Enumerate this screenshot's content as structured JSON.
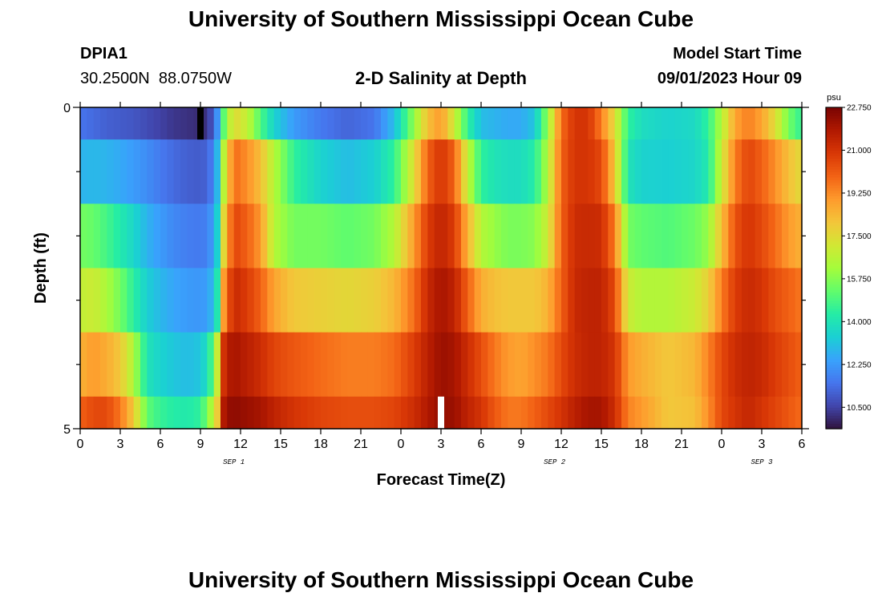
{
  "page_title": "University of Southern Mississippi Ocean Cube",
  "page_title_bottom": "University of Southern Mississippi Ocean Cube",
  "station": {
    "id": "DPIA1",
    "coords": "30.2500N  88.0750W"
  },
  "model": {
    "label": "Model Start Time",
    "time": "09/01/2023 Hour 09"
  },
  "chart_data": {
    "type": "heatmap",
    "title": "2-D Salinity at Depth",
    "xlabel": "Forecast Time(Z)",
    "ylabel": "Depth (ft)",
    "x_tick_labels": [
      "0",
      "3",
      "6",
      "9",
      "12",
      "15",
      "18",
      "21",
      "0",
      "3",
      "6",
      "9",
      "12",
      "15",
      "18",
      "21",
      "0",
      "3",
      "6"
    ],
    "x_tick_hours": [
      0,
      3,
      6,
      9,
      12,
      15,
      18,
      21,
      24,
      27,
      30,
      33,
      36,
      39,
      42,
      45,
      48,
      51,
      54
    ],
    "x_range": [
      0,
      54
    ],
    "date_labels": [
      {
        "text": "SEP 1",
        "hour": 11.5
      },
      {
        "text": "SEP 2",
        "hour": 35.5
      },
      {
        "text": "SEP 3",
        "hour": 51
      }
    ],
    "y_tick_labels": [
      "0",
      "5"
    ],
    "y_range": [
      0,
      5
    ],
    "depth_bands": [
      [
        0,
        0.5
      ],
      [
        0.5,
        1.5
      ],
      [
        1.5,
        2.5
      ],
      [
        2.5,
        3.5
      ],
      [
        3.5,
        4.5
      ],
      [
        4.5,
        5
      ]
    ],
    "time_step_hours": 0.5,
    "profile_keys": [
      {
        "h": 0,
        "v": [
          11.5,
          12.8,
          15.5,
          16.8,
          18.5,
          20.0
        ]
      },
      {
        "h": 1,
        "v": [
          11.3,
          12.9,
          15.3,
          17.0,
          19.0,
          20.5
        ]
      },
      {
        "h": 2,
        "v": [
          11.1,
          12.8,
          14.8,
          16.3,
          18.6,
          20.5
        ]
      },
      {
        "h": 3,
        "v": [
          11.0,
          12.6,
          14.2,
          15.5,
          18.0,
          19.6
        ]
      },
      {
        "h": 4,
        "v": [
          10.9,
          12.3,
          13.6,
          14.4,
          16.4,
          18.0
        ]
      },
      {
        "h": 5,
        "v": [
          10.7,
          12.0,
          12.8,
          13.4,
          14.0,
          15.2
        ]
      },
      {
        "h": 6,
        "v": [
          10.5,
          11.6,
          12.3,
          12.9,
          13.5,
          14.6
        ]
      },
      {
        "h": 7,
        "v": [
          10.3,
          11.3,
          11.9,
          12.5,
          13.2,
          14.3
        ]
      },
      {
        "h": 8,
        "v": [
          10.2,
          11.1,
          11.7,
          12.3,
          13.0,
          14.2
        ]
      },
      {
        "h": 9,
        "v": [
          10.1,
          11.0,
          11.6,
          12.2,
          13.2,
          14.5
        ]
      },
      {
        "h": 9.6,
        "v": [
          10.3,
          11.2,
          11.8,
          12.4,
          14.0,
          15.8
        ]
      },
      {
        "h": 10.2,
        "v": [
          11.8,
          12.5,
          13.0,
          13.6,
          16.5,
          17.5
        ]
      },
      {
        "h": 10.8,
        "v": [
          15.5,
          17.0,
          18.0,
          19.5,
          21.5,
          22.2
        ]
      },
      {
        "h": 11.5,
        "v": [
          17.6,
          19.8,
          20.6,
          21.3,
          22.0,
          22.4
        ]
      },
      {
        "h": 12.5,
        "v": [
          16.8,
          19.2,
          20.0,
          20.8,
          21.6,
          22.2
        ]
      },
      {
        "h": 13.5,
        "v": [
          15.0,
          18.2,
          19.0,
          20.0,
          21.2,
          22.0
        ]
      },
      {
        "h": 14.5,
        "v": [
          13.5,
          16.5,
          16.5,
          18.8,
          20.6,
          21.5
        ]
      },
      {
        "h": 16,
        "v": [
          12.3,
          14.5,
          15.5,
          18.0,
          20.2,
          21.0
        ]
      },
      {
        "h": 18,
        "v": [
          11.6,
          13.5,
          15.5,
          17.8,
          19.8,
          20.6
        ]
      },
      {
        "h": 20,
        "v": [
          11.2,
          13.0,
          15.2,
          17.6,
          19.5,
          20.4
        ]
      },
      {
        "h": 22,
        "v": [
          11.5,
          13.4,
          15.5,
          17.8,
          19.5,
          20.4
        ]
      },
      {
        "h": 23.5,
        "v": [
          13.0,
          14.5,
          16.5,
          18.4,
          19.8,
          20.6
        ]
      },
      {
        "h": 25,
        "v": [
          16.0,
          17.5,
          19.0,
          19.8,
          20.8,
          21.2
        ]
      },
      {
        "h": 26,
        "v": [
          18.2,
          20.0,
          20.8,
          21.3,
          21.6,
          21.8
        ]
      },
      {
        "h": 27,
        "v": [
          19.0,
          21.0,
          21.5,
          22.0,
          22.2,
          22.3
        ]
      },
      {
        "h": 28,
        "v": [
          17.0,
          20.0,
          20.8,
          21.5,
          22.0,
          22.2
        ]
      },
      {
        "h": 29,
        "v": [
          14.5,
          16.8,
          18.5,
          20.0,
          21.2,
          21.5
        ]
      },
      {
        "h": 30,
        "v": [
          13.0,
          14.5,
          16.5,
          18.6,
          20.4,
          21.0
        ]
      },
      {
        "h": 31,
        "v": [
          12.8,
          14.0,
          16.0,
          18.2,
          19.6,
          20.2
        ]
      },
      {
        "h": 32,
        "v": [
          12.6,
          13.8,
          15.6,
          18.0,
          19.0,
          19.6
        ]
      },
      {
        "h": 33,
        "v": [
          12.6,
          13.8,
          15.6,
          18.0,
          18.8,
          19.6
        ]
      },
      {
        "h": 34,
        "v": [
          13.2,
          14.3,
          15.8,
          18.0,
          19.2,
          20.0
        ]
      },
      {
        "h": 35,
        "v": [
          16.0,
          16.5,
          17.0,
          18.5,
          19.6,
          20.5
        ]
      },
      {
        "h": 36,
        "v": [
          19.8,
          20.0,
          20.0,
          20.0,
          20.5,
          21.0
        ]
      },
      {
        "h": 37,
        "v": [
          21.0,
          21.0,
          21.2,
          21.3,
          21.2,
          21.6
        ]
      },
      {
        "h": 38,
        "v": [
          21.0,
          21.0,
          21.3,
          21.5,
          21.5,
          22.0
        ]
      },
      {
        "h": 39,
        "v": [
          19.5,
          20.5,
          21.2,
          21.5,
          21.5,
          22.0
        ]
      },
      {
        "h": 40,
        "v": [
          17.5,
          18.0,
          19.5,
          20.5,
          21.0,
          21.2
        ]
      },
      {
        "h": 41,
        "v": [
          14.5,
          14.0,
          15.5,
          17.0,
          19.0,
          19.4
        ]
      },
      {
        "h": 42,
        "v": [
          13.8,
          13.5,
          15.2,
          16.5,
          18.6,
          19.0
        ]
      },
      {
        "h": 44,
        "v": [
          13.5,
          13.4,
          15.0,
          16.5,
          18.0,
          18.0
        ]
      },
      {
        "h": 46,
        "v": [
          13.7,
          13.6,
          15.4,
          17.0,
          18.4,
          18.2
        ]
      },
      {
        "h": 47,
        "v": [
          14.5,
          14.2,
          16.0,
          17.8,
          19.4,
          19.2
        ]
      },
      {
        "h": 48,
        "v": [
          16.5,
          17.0,
          18.2,
          19.5,
          20.5,
          20.5
        ]
      },
      {
        "h": 49,
        "v": [
          18.8,
          19.5,
          20.3,
          20.8,
          21.2,
          21.0
        ]
      },
      {
        "h": 50,
        "v": [
          19.5,
          20.6,
          21.0,
          21.3,
          21.5,
          21.4
        ]
      },
      {
        "h": 51,
        "v": [
          18.8,
          20.0,
          20.5,
          21.0,
          21.3,
          21.0
        ]
      },
      {
        "h": 52,
        "v": [
          17.5,
          19.2,
          19.8,
          20.4,
          20.8,
          20.6
        ]
      },
      {
        "h": 53,
        "v": [
          15.5,
          18.2,
          19.0,
          20.0,
          20.4,
          20.2
        ]
      },
      {
        "h": 54,
        "v": [
          14.5,
          17.5,
          18.5,
          19.6,
          20.0,
          19.8
        ]
      }
    ],
    "missing_cells": [
      {
        "band": 0,
        "hour": 9,
        "color": "#000000"
      },
      {
        "band": 5,
        "hour": 27,
        "color": "#ffffff"
      }
    ],
    "colorbar": {
      "unit": "psu",
      "min": 9.625,
      "max": 22.75,
      "tick_labels": [
        "10.500",
        "12.250",
        "14.000",
        "15.750",
        "17.500",
        "19.250",
        "21.000",
        "22.750"
      ],
      "tick_values": [
        10.5,
        12.25,
        14.0,
        15.75,
        17.5,
        19.25,
        21.0,
        22.75
      ]
    },
    "colormap": [
      "#30123b",
      "#4145ab",
      "#4675ed",
      "#39a2fc",
      "#1bcfd4",
      "#24eca6",
      "#61fc6c",
      "#a4fc3b",
      "#d1e834",
      "#f3c63a",
      "#fe9b2d",
      "#f36315",
      "#d93806",
      "#b11901",
      "#7a0402"
    ]
  }
}
